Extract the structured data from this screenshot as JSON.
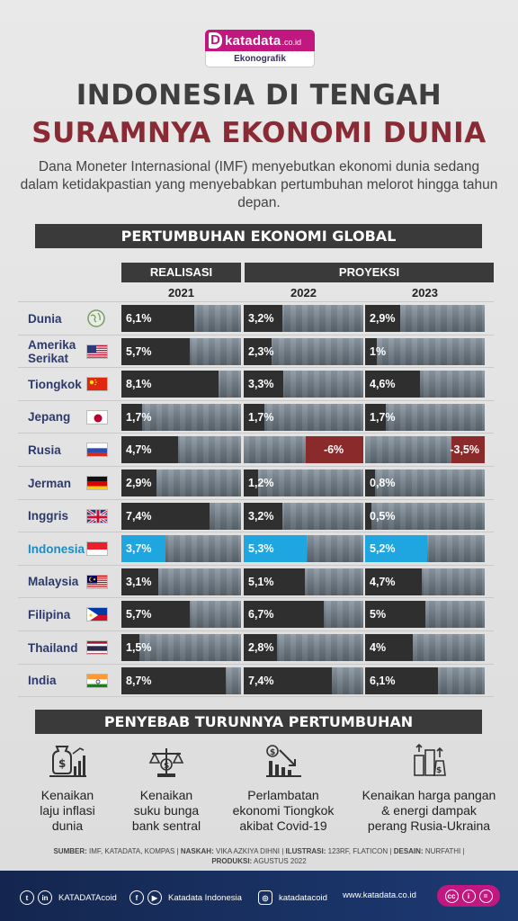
{
  "brand": {
    "name": "katadata",
    "tld": ".co.id",
    "logo_letter": "D",
    "tagline": "Ekonografik"
  },
  "title_line1": "INDONESIA DI TENGAH",
  "title_line2": "SURAMNYA EKONOMI DUNIA",
  "intro": "Dana Moneter Internasional (IMF) menyebutkan ekonomi dunia sedang dalam ketidakpastian yang menyebabkan pertumbuhan melorot hingga tahun depan.",
  "section_growth": "PERTUMBUHAN EKONOMI GLOBAL",
  "header_realisasi": "REALISASI",
  "header_proyeksi": "PROYEKSI",
  "chart_data": {
    "type": "bar",
    "title": "PERTUMBUHAN EKONOMI GLOBAL",
    "years": [
      "2021",
      "2022",
      "2023"
    ],
    "categories": [
      "Dunia",
      "Amerika Serikat",
      "Tiongkok",
      "Jepang",
      "Rusia",
      "Jerman",
      "Inggris",
      "Indonesia",
      "Malaysia",
      "Filipina",
      "Thailand",
      "India"
    ],
    "labels_2021": [
      "6,1%",
      "5,7%",
      "8,1%",
      "1,7%",
      "4,7%",
      "2,9%",
      "7,4%",
      "3,7%",
      "3,1%",
      "5,7%",
      "1,5%",
      "8,7%"
    ],
    "labels_2022": [
      "3,2%",
      "2,3%",
      "3,3%",
      "1,7%",
      "-6%",
      "1,2%",
      "3,2%",
      "5,3%",
      "5,1%",
      "6,7%",
      "2,8%",
      "7,4%"
    ],
    "labels_2023": [
      "2,9%",
      "1%",
      "4,6%",
      "1,7%",
      "-3,5%",
      "0,8%",
      "0,5%",
      "5,2%",
      "4,7%",
      "5%",
      "4%",
      "6,1%"
    ],
    "series": [
      {
        "name": "2021",
        "values": [
          6.1,
          5.7,
          8.1,
          1.7,
          4.7,
          2.9,
          7.4,
          3.7,
          3.1,
          5.7,
          1.5,
          8.7
        ]
      },
      {
        "name": "2022",
        "values": [
          3.2,
          2.3,
          3.3,
          1.7,
          -6.0,
          1.2,
          3.2,
          5.3,
          5.1,
          6.7,
          2.8,
          7.4
        ]
      },
      {
        "name": "2023",
        "values": [
          2.9,
          1.0,
          4.6,
          1.7,
          -3.5,
          0.8,
          0.5,
          5.2,
          4.7,
          5.0,
          4.0,
          6.1
        ]
      }
    ],
    "highlight": "Indonesia",
    "colors": {
      "positive": "#2f2f2f",
      "negative": "#8a2a2a",
      "highlight": "#1fa6e0"
    },
    "ylim": [
      -6,
      10
    ]
  },
  "section_causes": "PENYEBAB TURUNNYA PERTUMBUHAN",
  "causes": [
    {
      "icon": "money-bag-growth-icon",
      "text": "Kenaikan\nlaju inflasi\ndunia"
    },
    {
      "icon": "bank-balance-icon",
      "text": "Kenaikan\nsuku bunga\nbank sentral"
    },
    {
      "icon": "decline-chart-icon",
      "text": "Perlambatan\nekonomi Tiongkok\nakibat Covid-19"
    },
    {
      "icon": "food-price-rise-icon",
      "text": "Kenaikan harga pangan\n& energi dampak\nperang Rusia-Ukraina"
    }
  ],
  "credits": {
    "sumber_label": "SUMBER:",
    "sumber": "IMF, KATADATA, KOMPAS",
    "naskah_label": "NASKAH:",
    "naskah": "VIKA AZKIYA DIHNI",
    "ilustrasi_label": "ILUSTRASI:",
    "ilustrasi": "123RF, FLATICON",
    "desain_label": "DESAIN:",
    "desain": "NURFATHI",
    "produksi_label": "PRODUKSI:",
    "produksi": "AGUSTUS 2022"
  },
  "footer": {
    "social1": "KATADATAcoid",
    "social2": "Katadata Indonesia",
    "social3": "katadatacoid",
    "website": "www.katadata.co.id"
  }
}
